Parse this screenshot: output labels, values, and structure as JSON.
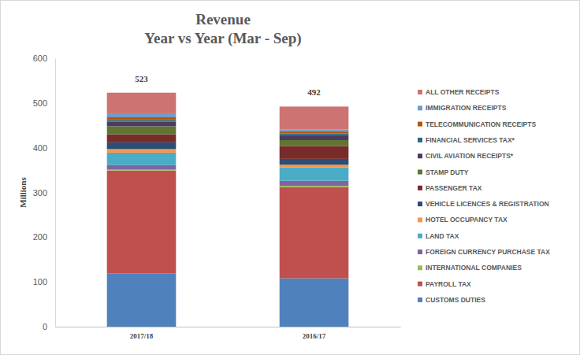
{
  "chart_data": {
    "type": "bar",
    "title": "Revenue",
    "subtitle": "Year vs Year (Mar - Sep)",
    "y_label": "Millions",
    "categories": [
      "2017/18",
      "2016/17"
    ],
    "stacked": true,
    "grid": false,
    "legend": "right",
    "ylim": [
      0,
      600
    ],
    "yticks": [
      0,
      100,
      200,
      300,
      400,
      500,
      600
    ],
    "totals": [
      523,
      492
    ],
    "series": [
      {
        "name": "CUSTOMS DUTIES",
        "color": "#4f81bd",
        "values": [
          119,
          108
        ]
      },
      {
        "name": "PAYROLL TAX",
        "color": "#c0504d",
        "values": [
          230,
          204
        ]
      },
      {
        "name": "INTERNATIONAL COMPANIES",
        "color": "#9bbb59",
        "values": [
          2,
          3
        ]
      },
      {
        "name": "FOREIGN CURRENCY PURCHASE TAX",
        "color": "#8064a2",
        "values": [
          10,
          11
        ]
      },
      {
        "name": "LAND TAX",
        "color": "#4bacc6",
        "values": [
          28,
          30
        ]
      },
      {
        "name": "HOTEL OCCUPANCY TAX",
        "color": "#f79646",
        "values": [
          8,
          6
        ]
      },
      {
        "name": "VEHICLE LICENCES & REGISTRATION",
        "color": "#2c4d75",
        "values": [
          15,
          13
        ]
      },
      {
        "name": "PASSENGER TAX",
        "color": "#772c2a",
        "values": [
          18,
          29
        ]
      },
      {
        "name": "STAMP DUTY",
        "color": "#5f7530",
        "values": [
          18,
          13
        ]
      },
      {
        "name": "CIVIL AVIATION RECEIPTS*",
        "color": "#4d3b62",
        "values": [
          10,
          11
        ]
      },
      {
        "name": "FINANCIAL SERVICES TAX*",
        "color": "#276a7c",
        "values": [
          4,
          4
        ]
      },
      {
        "name": "TELECOMMUNICATION RECEIPTS",
        "color": "#b65708",
        "values": [
          6,
          5
        ]
      },
      {
        "name": "IMMIGRATION RECEIPTS",
        "color": "#729aca",
        "values": [
          9,
          4
        ]
      },
      {
        "name": "ALL OTHER RECEIPTS",
        "color": "#cd7371",
        "values": [
          46,
          51
        ]
      }
    ]
  }
}
